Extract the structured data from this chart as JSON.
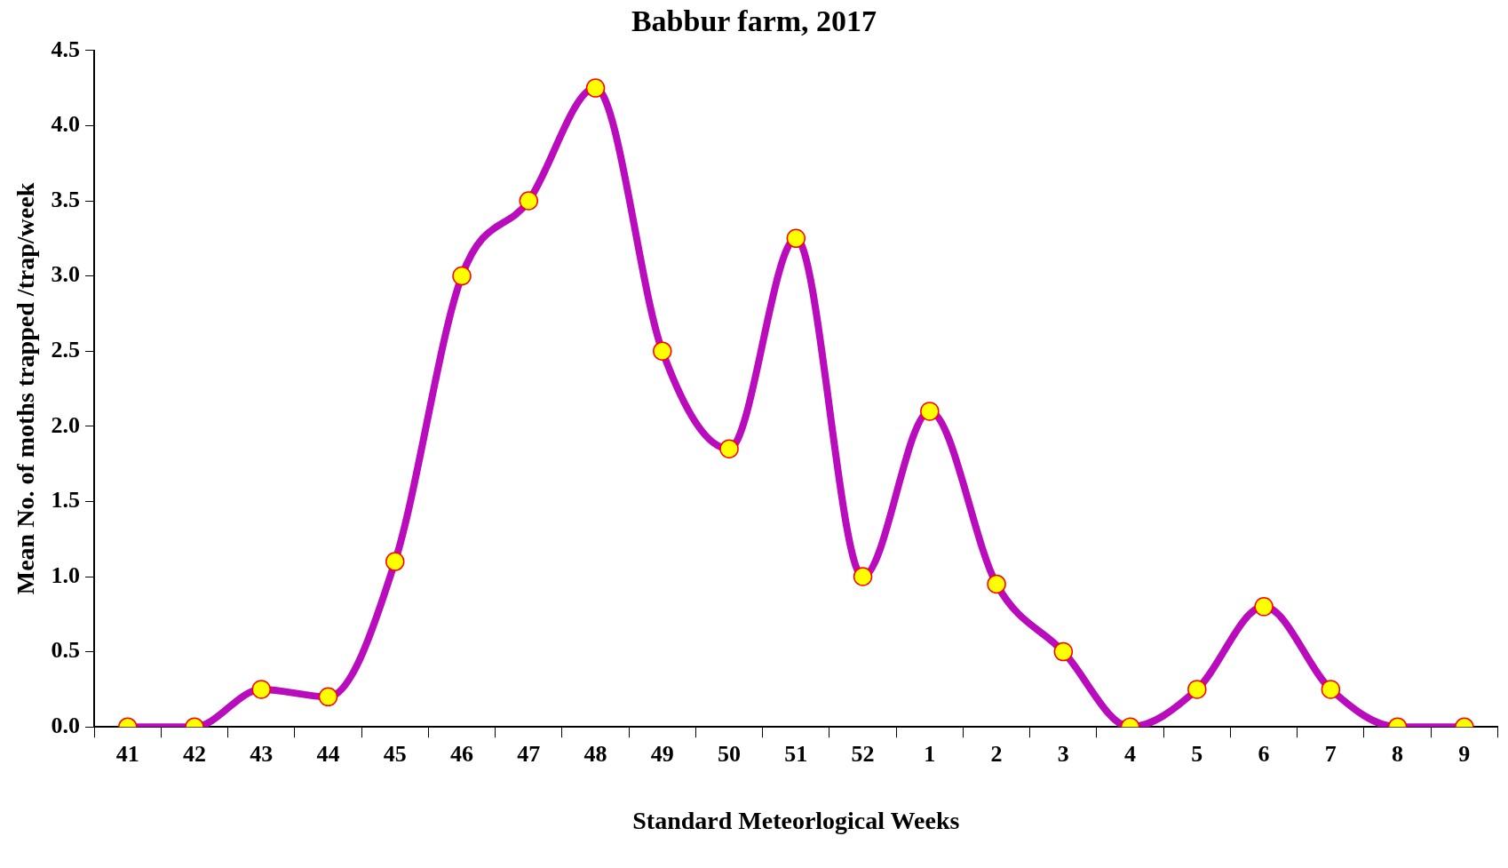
{
  "chart_data": {
    "type": "line",
    "title": "Babbur farm, 2017",
    "xlabel": "Standard Meteorlogical Weeks",
    "ylabel": "Mean No. of moths trapped /trap/week",
    "categories": [
      "41",
      "42",
      "43",
      "44",
      "45",
      "46",
      "47",
      "48",
      "49",
      "50",
      "51",
      "52",
      "1",
      "2",
      "3",
      "4",
      "5",
      "6",
      "7",
      "8",
      "9"
    ],
    "series": [
      {
        "color": "#b90cbd",
        "values": [
          0,
          0,
          0.25,
          0.2,
          1.1,
          3.0,
          3.5,
          4.25,
          2.5,
          1.85,
          3.25,
          1.0,
          2.1,
          0.95,
          0.5,
          0,
          0.25,
          0.8,
          0.25,
          0,
          0
        ]
      }
    ],
    "ylim": [
      0,
      4.5
    ],
    "yticks": [
      {
        "value": 0,
        "label": "0.0"
      },
      {
        "value": 0.5,
        "label": "0.5"
      },
      {
        "value": 1,
        "label": "1.0"
      },
      {
        "value": 1.5,
        "label": "1.5"
      },
      {
        "value": 2,
        "label": "2.0"
      },
      {
        "value": 2.5,
        "label": "2.5"
      },
      {
        "value": 3,
        "label": "3.0"
      },
      {
        "value": 3.5,
        "label": "3.5"
      },
      {
        "value": 4,
        "label": "4.0"
      },
      {
        "value": 4.5,
        "label": "4.5"
      }
    ],
    "grid": false,
    "legend": false,
    "marker": "circle",
    "line_style": "solid"
  }
}
